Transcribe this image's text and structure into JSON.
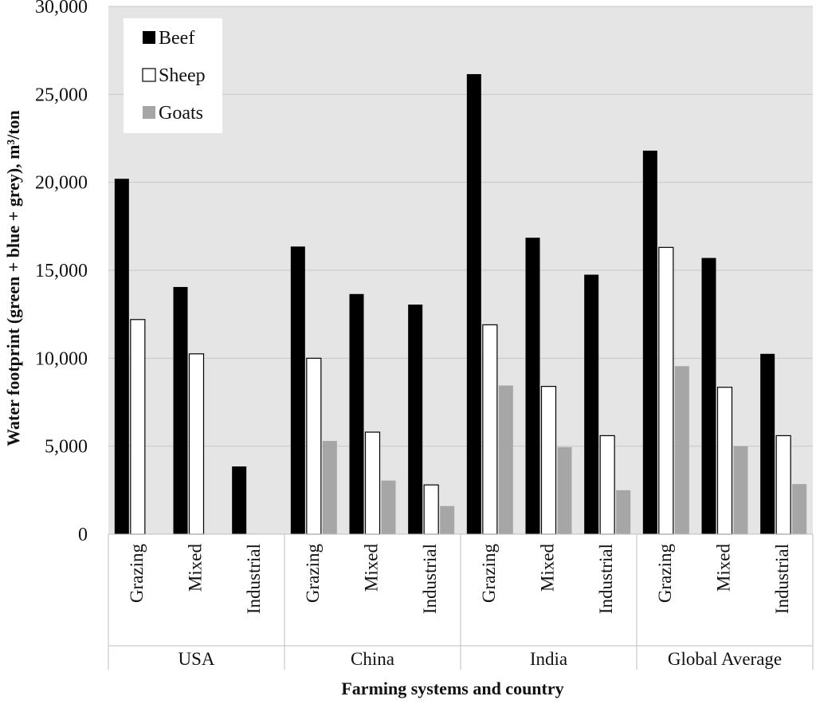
{
  "chart_data": {
    "type": "bar",
    "xlabel": "Farming systems and country",
    "ylabel": "Water footprint (green + blue + grey), m³/ton",
    "ylim": [
      0,
      30000
    ],
    "yticks": [
      0,
      5000,
      10000,
      15000,
      20000,
      25000,
      30000
    ],
    "ytick_labels": [
      "0",
      "5,000",
      "10,000",
      "15,000",
      "20,000",
      "25,000",
      "30,000"
    ],
    "groups": [
      {
        "label": "USA",
        "categories": [
          "Grazing",
          "Mixed",
          "Industrial"
        ]
      },
      {
        "label": "China",
        "categories": [
          "Grazing",
          "Mixed",
          "Industrial"
        ]
      },
      {
        "label": "India",
        "categories": [
          "Grazing",
          "Mixed",
          "Industrial"
        ]
      },
      {
        "label": "Global Average",
        "categories": [
          "Grazing",
          "Mixed",
          "Industrial"
        ]
      }
    ],
    "series": [
      {
        "name": "Beef",
        "color": "#000000",
        "values": [
          20200,
          14050,
          3850,
          16350,
          13650,
          13050,
          26150,
          16850,
          14750,
          21800,
          15700,
          10250
        ]
      },
      {
        "name": "Sheep",
        "color": "#ffffff",
        "values": [
          12200,
          10250,
          null,
          10000,
          5800,
          2800,
          11900,
          8400,
          5600,
          16300,
          8350,
          5600
        ]
      },
      {
        "name": "Goats",
        "color": "#a6a6a6",
        "values": [
          null,
          null,
          null,
          5300,
          3050,
          1600,
          8450,
          4950,
          2500,
          9550,
          5000,
          2850
        ]
      }
    ],
    "legend": {
      "position": "top-left"
    },
    "grid": {
      "horizontal": true
    }
  }
}
